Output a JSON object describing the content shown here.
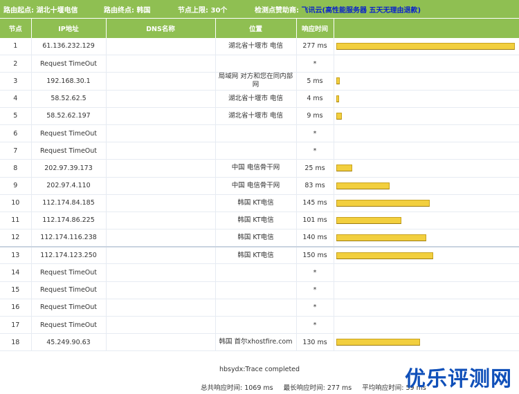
{
  "header": {
    "start_label": "路由起点:",
    "start_value": "湖北十堰电信",
    "end_label": "路由终点:",
    "end_value": "韩国",
    "limit_label": "节点上限:",
    "limit_value": "30个",
    "sponsor_label": "检测点赞助商:",
    "sponsor_name": "飞讯云",
    "sponsor_link": "(高性能服务器 五天无理由退款)"
  },
  "columns": {
    "hop": "节点",
    "ip": "IP地址",
    "dns": "DNS名称",
    "location": "位置",
    "time": "响应时间",
    "graph": ""
  },
  "rows": [
    {
      "hop": "1",
      "ip": "61.136.232.129",
      "dns": "",
      "location": "湖北省十堰市 电信",
      "time": "277 ms",
      "ms": 277
    },
    {
      "hop": "2",
      "ip": "Request TimeOut",
      "dns": "",
      "location": "",
      "time": "*",
      "ms": 0
    },
    {
      "hop": "3",
      "ip": "192.168.30.1",
      "dns": "",
      "location": "局域网 对方和您在同内部网",
      "time": "5 ms",
      "ms": 5
    },
    {
      "hop": "4",
      "ip": "58.52.62.5",
      "dns": "",
      "location": "湖北省十堰市 电信",
      "time": "4 ms",
      "ms": 4
    },
    {
      "hop": "5",
      "ip": "58.52.62.197",
      "dns": "",
      "location": "湖北省十堰市 电信",
      "time": "9 ms",
      "ms": 9
    },
    {
      "hop": "6",
      "ip": "Request TimeOut",
      "dns": "",
      "location": "",
      "time": "*",
      "ms": 0
    },
    {
      "hop": "7",
      "ip": "Request TimeOut",
      "dns": "",
      "location": "",
      "time": "*",
      "ms": 0
    },
    {
      "hop": "8",
      "ip": "202.97.39.173",
      "dns": "",
      "location": "中国 电信骨干网",
      "time": "25 ms",
      "ms": 25
    },
    {
      "hop": "9",
      "ip": "202.97.4.110",
      "dns": "",
      "location": "中国 电信骨干网",
      "time": "83 ms",
      "ms": 83
    },
    {
      "hop": "10",
      "ip": "112.174.84.185",
      "dns": "",
      "location": "韩国 KT电信",
      "time": "145 ms",
      "ms": 145
    },
    {
      "hop": "11",
      "ip": "112.174.86.225",
      "dns": "",
      "location": "韩国 KT电信",
      "time": "101 ms",
      "ms": 101
    },
    {
      "hop": "12",
      "ip": "112.174.116.238",
      "dns": "",
      "location": "韩国 KT电信",
      "time": "140 ms",
      "ms": 140
    },
    {
      "hop": "13",
      "ip": "112.174.123.250",
      "dns": "",
      "location": "韩国 KT电信",
      "time": "150 ms",
      "ms": 150
    },
    {
      "hop": "14",
      "ip": "Request TimeOut",
      "dns": "",
      "location": "",
      "time": "*",
      "ms": 0
    },
    {
      "hop": "15",
      "ip": "Request TimeOut",
      "dns": "",
      "location": "",
      "time": "*",
      "ms": 0
    },
    {
      "hop": "16",
      "ip": "Request TimeOut",
      "dns": "",
      "location": "",
      "time": "*",
      "ms": 0
    },
    {
      "hop": "17",
      "ip": "Request TimeOut",
      "dns": "",
      "location": "",
      "time": "*",
      "ms": 0
    },
    {
      "hop": "18",
      "ip": "45.249.90.63",
      "dns": "",
      "location": "韩国 首尔xhostfire.com",
      "time": "130 ms",
      "ms": 130
    }
  ],
  "max_ms": 277,
  "status_text": "hbsydx:Trace completed",
  "summary": {
    "total": "总共响应时间: 1069 ms",
    "longest": "最长响应时间: 277 ms",
    "average": "平均响应时间: 59 ms"
  },
  "watermark": "优乐评测网",
  "colors": {
    "header_green": "#8fbf52",
    "bar_yellow": "#f2cf3e",
    "link_blue": "#0b24c9",
    "watermark_blue": "#0f4fb9"
  }
}
